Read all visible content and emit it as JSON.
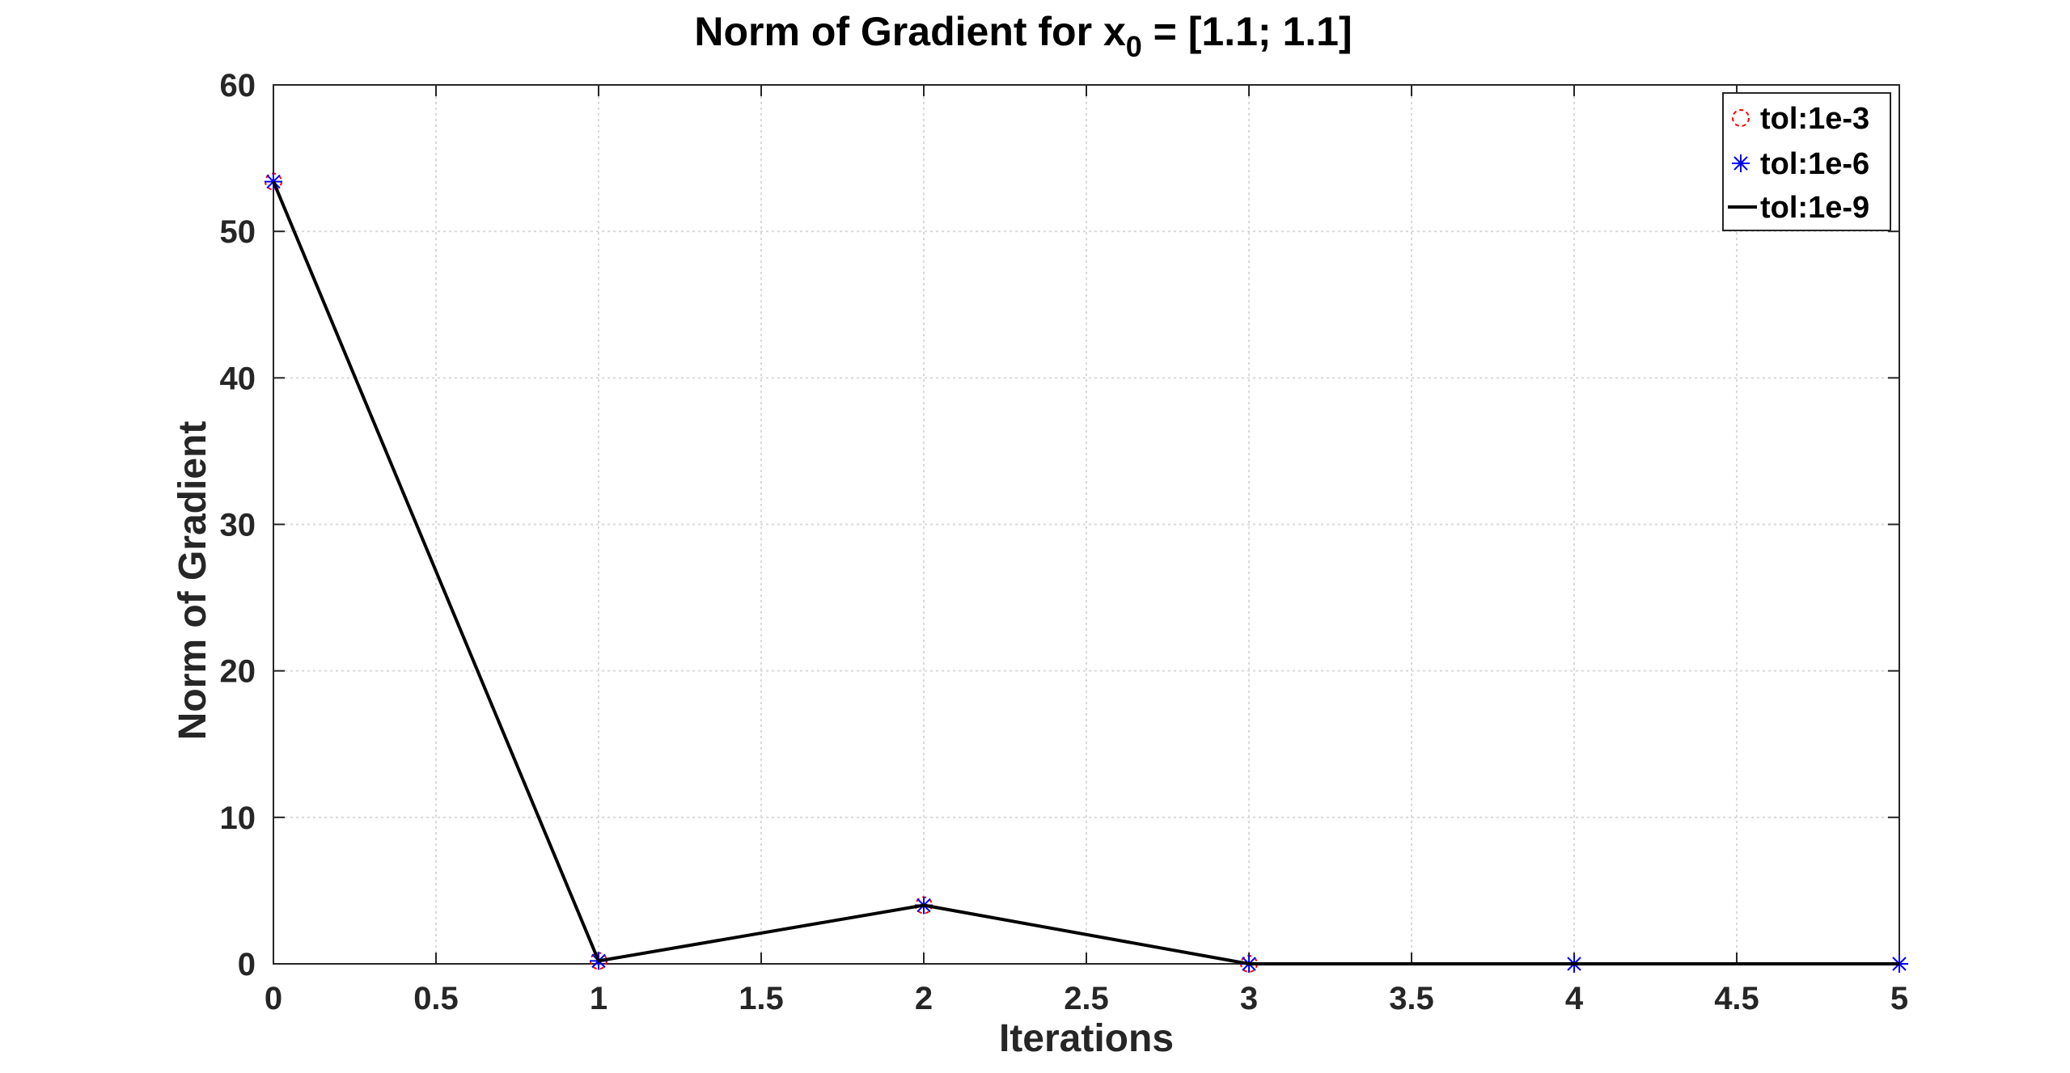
{
  "chart_data": {
    "type": "line",
    "title_main": "Norm of Gradient for x",
    "title_sub": "0",
    "title_rest": " = [1.1; 1.1]",
    "xlabel": "Iterations",
    "ylabel": "Norm of Gradient",
    "xlim": [
      0,
      5
    ],
    "ylim": [
      0,
      60
    ],
    "xticks": [
      0,
      0.5,
      1,
      1.5,
      2,
      2.5,
      3,
      3.5,
      4,
      4.5,
      5
    ],
    "xtick_labels": [
      "0",
      "0.5",
      "1",
      "1.5",
      "2",
      "2.5",
      "3",
      "3.5",
      "4",
      "4.5",
      "5"
    ],
    "yticks": [
      0,
      10,
      20,
      30,
      40,
      50,
      60
    ],
    "ytick_labels": [
      "0",
      "10",
      "20",
      "30",
      "40",
      "50",
      "60"
    ],
    "grid": true,
    "legend_position": "top-right",
    "series": [
      {
        "name": "tol:1e-3",
        "marker": "circle",
        "line": "none",
        "color": "#ff0000",
        "x": [
          0,
          1,
          2,
          3
        ],
        "y": [
          53.4,
          0.2,
          4.0,
          0.0
        ]
      },
      {
        "name": "tol:1e-6",
        "marker": "asterisk",
        "line": "none",
        "color": "#0000ff",
        "x": [
          0,
          1,
          2,
          3,
          4,
          5
        ],
        "y": [
          53.4,
          0.2,
          4.0,
          0.0,
          0.0,
          0.0
        ]
      },
      {
        "name": "tol:1e-9",
        "marker": "none",
        "line": "solid",
        "color": "#000000",
        "x": [
          0,
          1,
          2,
          3,
          4,
          5
        ],
        "y": [
          53.4,
          0.2,
          4.0,
          0.0,
          0.0,
          0.0
        ]
      }
    ]
  }
}
